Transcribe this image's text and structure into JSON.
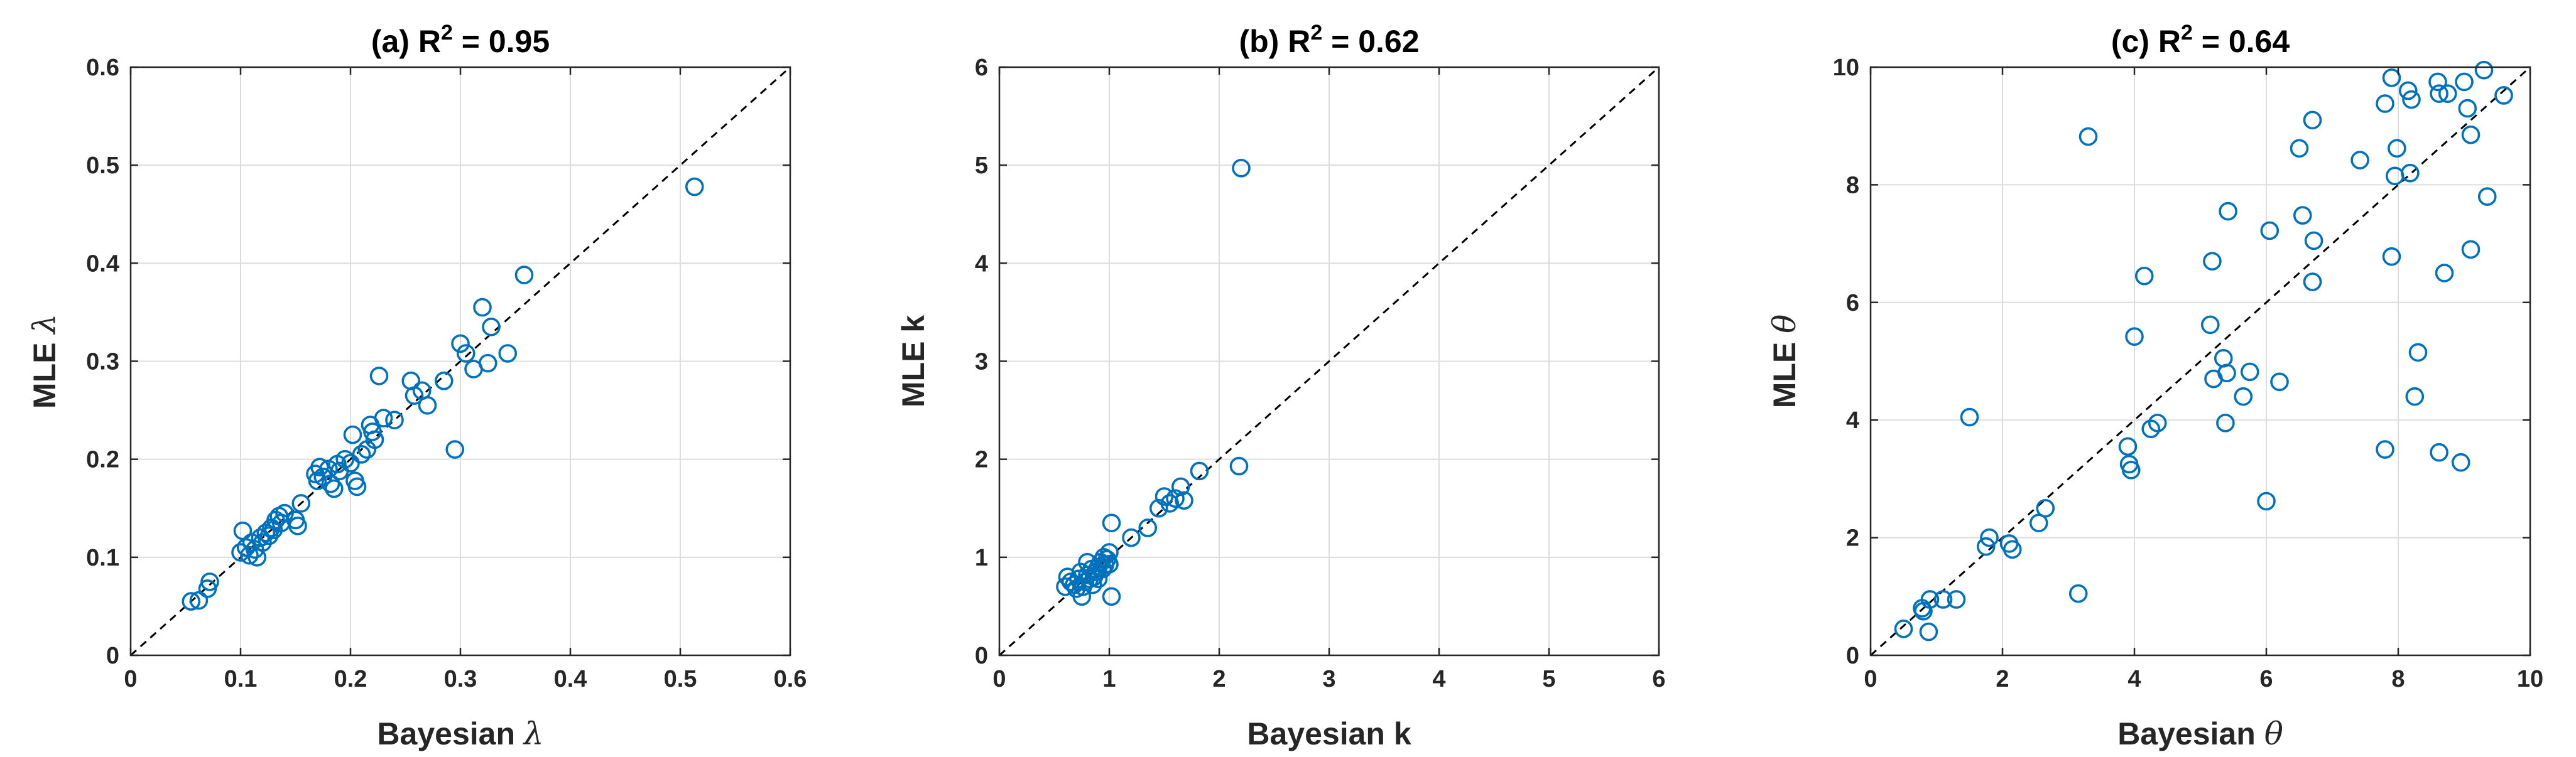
{
  "colors": {
    "marker": "#0072bd",
    "axis": "#262626",
    "grid": "#dcdcdc",
    "reference_line": "#000000"
  },
  "chart_data": [
    {
      "type": "scatter",
      "title": "(a) R2 = 0.95",
      "title_parts": {
        "prefix": "(a) R",
        "sup": "2",
        "suffix": " = 0.95"
      },
      "xlabel": "Bayesian λ",
      "xlabel_parts": {
        "text": "Bayesian ",
        "symbol": "λ"
      },
      "ylabel": "MLE λ",
      "ylabel_parts": {
        "text": "MLE ",
        "symbol": "λ"
      },
      "xlim": [
        0,
        0.6
      ],
      "ylim": [
        0,
        0.6
      ],
      "xticks": [
        0,
        0.1,
        0.2,
        0.3,
        0.4,
        0.5,
        0.6
      ],
      "yticks": [
        0,
        0.1,
        0.2,
        0.3,
        0.4,
        0.5,
        0.6
      ],
      "xtick_labels": [
        "0",
        "0.1",
        "0.2",
        "0.3",
        "0.4",
        "0.5",
        "0.6"
      ],
      "ytick_labels": [
        "0",
        "0.1",
        "0.2",
        "0.3",
        "0.4",
        "0.5",
        "0.6"
      ],
      "grid": true,
      "reference_line": "y = x",
      "points": [
        [
          0.055,
          0.055
        ],
        [
          0.062,
          0.056
        ],
        [
          0.07,
          0.068
        ],
        [
          0.072,
          0.075
        ],
        [
          0.1,
          0.105
        ],
        [
          0.102,
          0.127
        ],
        [
          0.105,
          0.11
        ],
        [
          0.108,
          0.102
        ],
        [
          0.11,
          0.115
        ],
        [
          0.113,
          0.108
        ],
        [
          0.115,
          0.1
        ],
        [
          0.118,
          0.12
        ],
        [
          0.12,
          0.115
        ],
        [
          0.123,
          0.125
        ],
        [
          0.126,
          0.122
        ],
        [
          0.128,
          0.13
        ],
        [
          0.13,
          0.128
        ],
        [
          0.132,
          0.138
        ],
        [
          0.135,
          0.142
        ],
        [
          0.137,
          0.135
        ],
        [
          0.14,
          0.145
        ],
        [
          0.15,
          0.138
        ],
        [
          0.152,
          0.132
        ],
        [
          0.155,
          0.155
        ],
        [
          0.168,
          0.185
        ],
        [
          0.17,
          0.178
        ],
        [
          0.172,
          0.192
        ],
        [
          0.175,
          0.182
        ],
        [
          0.18,
          0.19
        ],
        [
          0.182,
          0.175
        ],
        [
          0.185,
          0.17
        ],
        [
          0.188,
          0.195
        ],
        [
          0.19,
          0.188
        ],
        [
          0.195,
          0.2
        ],
        [
          0.2,
          0.196
        ],
        [
          0.202,
          0.225
        ],
        [
          0.204,
          0.178
        ],
        [
          0.206,
          0.172
        ],
        [
          0.21,
          0.205
        ],
        [
          0.215,
          0.21
        ],
        [
          0.218,
          0.235
        ],
        [
          0.22,
          0.228
        ],
        [
          0.222,
          0.22
        ],
        [
          0.226,
          0.285
        ],
        [
          0.23,
          0.242
        ],
        [
          0.24,
          0.24
        ],
        [
          0.255,
          0.28
        ],
        [
          0.258,
          0.265
        ],
        [
          0.265,
          0.27
        ],
        [
          0.27,
          0.255
        ],
        [
          0.285,
          0.28
        ],
        [
          0.295,
          0.21
        ],
        [
          0.3,
          0.318
        ],
        [
          0.305,
          0.308
        ],
        [
          0.312,
          0.292
        ],
        [
          0.32,
          0.355
        ],
        [
          0.325,
          0.298
        ],
        [
          0.328,
          0.335
        ],
        [
          0.343,
          0.308
        ],
        [
          0.358,
          0.388
        ],
        [
          0.513,
          0.478
        ]
      ]
    },
    {
      "type": "scatter",
      "title": "(b) R2 = 0.62",
      "title_parts": {
        "prefix": "(b) R",
        "sup": "2",
        "suffix": " = 0.62"
      },
      "xlabel": "Bayesian k",
      "xlabel_parts": {
        "text": "Bayesian k",
        "symbol": ""
      },
      "ylabel": "MLE k",
      "ylabel_parts": {
        "text": "MLE k",
        "symbol": ""
      },
      "xlim": [
        0,
        6
      ],
      "ylim": [
        0,
        6
      ],
      "xticks": [
        0,
        1,
        2,
        3,
        4,
        5,
        6
      ],
      "yticks": [
        0,
        1,
        2,
        3,
        4,
        5,
        6
      ],
      "xtick_labels": [
        "0",
        "1",
        "2",
        "3",
        "4",
        "5",
        "6"
      ],
      "ytick_labels": [
        "0",
        "1",
        "2",
        "3",
        "4",
        "5",
        "6"
      ],
      "grid": true,
      "reference_line": "y = x",
      "points": [
        [
          0.6,
          0.7
        ],
        [
          0.62,
          0.8
        ],
        [
          0.65,
          0.75
        ],
        [
          0.68,
          0.72
        ],
        [
          0.7,
          0.68
        ],
        [
          0.72,
          0.78
        ],
        [
          0.74,
          0.85
        ],
        [
          0.75,
          0.6
        ],
        [
          0.76,
          0.7
        ],
        [
          0.78,
          0.75
        ],
        [
          0.8,
          0.82
        ],
        [
          0.8,
          0.95
        ],
        [
          0.82,
          0.78
        ],
        [
          0.84,
          0.88
        ],
        [
          0.85,
          0.72
        ],
        [
          0.86,
          0.8
        ],
        [
          0.88,
          0.85
        ],
        [
          0.9,
          0.9
        ],
        [
          0.9,
          0.78
        ],
        [
          0.92,
          0.95
        ],
        [
          0.94,
          0.88
        ],
        [
          0.95,
          1.0
        ],
        [
          0.96,
          0.92
        ],
        [
          0.98,
          0.98
        ],
        [
          1.0,
          0.93
        ],
        [
          1.0,
          1.05
        ],
        [
          1.02,
          0.6
        ],
        [
          1.02,
          1.35
        ],
        [
          1.2,
          1.2
        ],
        [
          1.35,
          1.3
        ],
        [
          1.45,
          1.5
        ],
        [
          1.5,
          1.62
        ],
        [
          1.55,
          1.55
        ],
        [
          1.6,
          1.6
        ],
        [
          1.65,
          1.72
        ],
        [
          1.68,
          1.58
        ],
        [
          1.82,
          1.88
        ],
        [
          2.18,
          1.93
        ],
        [
          2.2,
          4.97
        ]
      ]
    },
    {
      "type": "scatter",
      "title": "(c) R2 = 0.64",
      "title_parts": {
        "prefix": "(c) R",
        "sup": "2",
        "suffix": " = 0.64"
      },
      "xlabel": "Bayesian θ",
      "xlabel_parts": {
        "text": "Bayesian ",
        "symbol": "θ"
      },
      "ylabel": "MLE θ",
      "ylabel_parts": {
        "text": "MLE ",
        "symbol": "θ"
      },
      "xlim": [
        0,
        10
      ],
      "ylim": [
        0,
        10
      ],
      "xticks": [
        0,
        2,
        4,
        6,
        8,
        10
      ],
      "yticks": [
        0,
        2,
        4,
        6,
        8,
        10
      ],
      "xtick_labels": [
        "0",
        "2",
        "4",
        "6",
        "8",
        "10"
      ],
      "ytick_labels": [
        "0",
        "2",
        "4",
        "6",
        "8",
        "10"
      ],
      "grid": true,
      "reference_line": "y = x",
      "points": [
        [
          0.5,
          0.45
        ],
        [
          0.78,
          0.8
        ],
        [
          0.8,
          0.75
        ],
        [
          0.88,
          0.4
        ],
        [
          0.9,
          0.95
        ],
        [
          1.1,
          0.95
        ],
        [
          1.3,
          0.95
        ],
        [
          1.5,
          4.05
        ],
        [
          1.75,
          1.85
        ],
        [
          1.8,
          2.0
        ],
        [
          2.1,
          1.9
        ],
        [
          2.15,
          1.8
        ],
        [
          2.55,
          2.25
        ],
        [
          2.65,
          2.5
        ],
        [
          3.15,
          1.05
        ],
        [
          3.3,
          8.82
        ],
        [
          3.9,
          3.55
        ],
        [
          3.92,
          3.25
        ],
        [
          3.95,
          3.15
        ],
        [
          4.0,
          5.42
        ],
        [
          4.15,
          6.45
        ],
        [
          4.25,
          3.85
        ],
        [
          4.35,
          3.95
        ],
        [
          5.15,
          5.62
        ],
        [
          5.18,
          6.7
        ],
        [
          5.2,
          4.7
        ],
        [
          5.35,
          5.05
        ],
        [
          5.38,
          3.95
        ],
        [
          5.4,
          4.8
        ],
        [
          5.42,
          7.55
        ],
        [
          5.65,
          4.4
        ],
        [
          5.75,
          4.82
        ],
        [
          6.0,
          2.62
        ],
        [
          6.05,
          7.22
        ],
        [
          6.2,
          4.65
        ],
        [
          6.5,
          8.62
        ],
        [
          6.55,
          7.48
        ],
        [
          6.7,
          9.1
        ],
        [
          6.7,
          6.35
        ],
        [
          6.72,
          7.05
        ],
        [
          7.42,
          8.42
        ],
        [
          7.8,
          9.38
        ],
        [
          7.8,
          3.5
        ],
        [
          7.9,
          9.82
        ],
        [
          7.9,
          6.78
        ],
        [
          7.95,
          8.15
        ],
        [
          7.98,
          8.62
        ],
        [
          8.15,
          9.6
        ],
        [
          8.18,
          8.2
        ],
        [
          8.2,
          9.45
        ],
        [
          8.25,
          4.4
        ],
        [
          8.3,
          5.15
        ],
        [
          8.6,
          9.75
        ],
        [
          8.62,
          9.55
        ],
        [
          8.62,
          3.45
        ],
        [
          8.7,
          6.5
        ],
        [
          8.75,
          9.55
        ],
        [
          8.95,
          3.28
        ],
        [
          9.0,
          9.75
        ],
        [
          9.05,
          9.3
        ],
        [
          9.1,
          8.85
        ],
        [
          9.1,
          6.9
        ],
        [
          9.3,
          9.95
        ],
        [
          9.35,
          7.8
        ],
        [
          9.6,
          9.52
        ]
      ]
    }
  ]
}
